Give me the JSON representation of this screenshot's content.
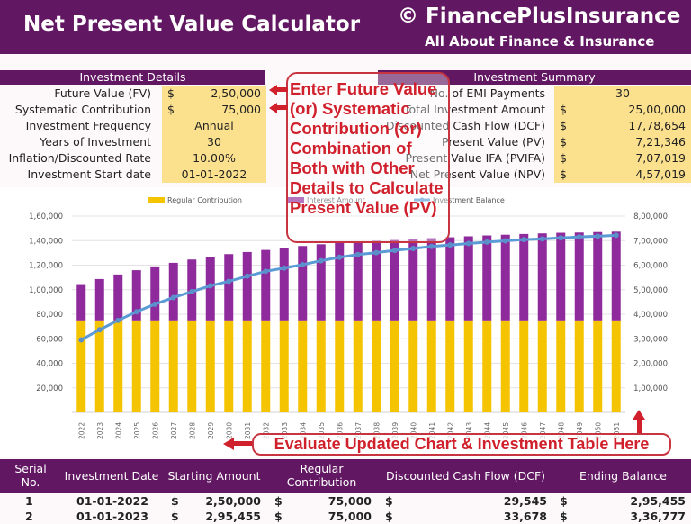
{
  "header": {
    "title": "Net Present Value Calculator",
    "brand": "© FinancePlusInsurance",
    "tagline": "All About Finance & Insurance"
  },
  "investment_details": {
    "heading": "Investment Details",
    "rows": [
      {
        "label": "Future Value (FV)",
        "currency": "$",
        "value": "2,50,000"
      },
      {
        "label": "Systematic Contribution",
        "currency": "$",
        "value": "75,000"
      },
      {
        "label": "Investment Frequency",
        "currency": "",
        "value": "Annual"
      },
      {
        "label": "Years of Investment",
        "currency": "",
        "value": "30"
      },
      {
        "label": "Inflation/Discounted Rate",
        "currency": "",
        "value": "10.00%"
      },
      {
        "label": "Investment Start date",
        "currency": "",
        "value": "01-01-2022"
      }
    ]
  },
  "investment_summary": {
    "heading": "Investment Summary",
    "rows": [
      {
        "label": "No. of EMI Payments",
        "currency": "",
        "value": "30"
      },
      {
        "label": "Total Investment Amount",
        "currency": "$",
        "value": "25,00,000"
      },
      {
        "label": "Discounted Cash Flow (DCF)",
        "currency": "$",
        "value": "17,78,654"
      },
      {
        "label": "Present Value (PV)",
        "currency": "$",
        "value": "7,21,346"
      },
      {
        "label": "Present Value IFA (PVIFA)",
        "currency": "$",
        "value": "7,07,019"
      },
      {
        "label": "Net Present Value (NPV)",
        "currency": "$",
        "value": "4,57,019"
      }
    ]
  },
  "callout_top": "Enter Future Value  (or) Systematic Contribution (or) Combination of Both with Other Details to Calculate Present Value (PV)",
  "callout_bottom": "Evaluate Updated Chart & Investment Table Here",
  "chart_data": {
    "type": "bar",
    "categories": [
      "2022",
      "2023",
      "2024",
      "2025",
      "2026",
      "2027",
      "2028",
      "2029",
      "2030",
      "2031",
      "2032",
      "2033",
      "2034",
      "2035",
      "2036",
      "2037",
      "2038",
      "2039",
      "2040",
      "2041",
      "2042",
      "2043",
      "2044",
      "2045",
      "2046",
      "2047",
      "2048",
      "2049",
      "2050",
      "2051"
    ],
    "series": [
      {
        "name": "Regular Contribution",
        "kind": "stacked-bar",
        "axis": "left",
        "color": "#f5c400",
        "values": [
          75000,
          75000,
          75000,
          75000,
          75000,
          75000,
          75000,
          75000,
          75000,
          75000,
          75000,
          75000,
          75000,
          75000,
          75000,
          75000,
          75000,
          75000,
          75000,
          75000,
          75000,
          75000,
          75000,
          75000,
          75000,
          75000,
          75000,
          75000,
          75000,
          75000
        ]
      },
      {
        "name": "Interest Amount",
        "kind": "stacked-bar",
        "axis": "left",
        "color": "#8e2a9c",
        "values": [
          29545,
          33678,
          37400,
          40900,
          44000,
          46900,
          49600,
          51800,
          54000,
          55700,
          57400,
          59100,
          60600,
          62000,
          63000,
          64000,
          64800,
          65500,
          66200,
          67000,
          67700,
          68500,
          69200,
          69800,
          70400,
          70900,
          71400,
          71600,
          72000,
          72300
        ]
      },
      {
        "name": "Investment Balance",
        "kind": "line",
        "axis": "right",
        "color": "#5b9bd5",
        "values": [
          295455,
          336777,
          375000,
          410000,
          441000,
          468000,
          492000,
          516000,
          534000,
          555000,
          575000,
          588000,
          602000,
          618000,
          632000,
          643000,
          651000,
          660000,
          668000,
          676000,
          682000,
          688000,
          694000,
          699000,
          704000,
          707000,
          711000,
          715000,
          718000,
          721346
        ]
      }
    ],
    "left_ticks": [
      "20,000",
      "40,000",
      "60,000",
      "80,000",
      "1,00,000",
      "1,20,000",
      "1,40,000",
      "1,60,000"
    ],
    "right_ticks": [
      "1,00,000",
      "2,00,000",
      "3,00,000",
      "4,00,000",
      "5,00,000",
      "6,00,000",
      "7,00,000",
      "8,00,000"
    ],
    "ylim_left": [
      0,
      160000
    ],
    "ylim_right": [
      0,
      800000
    ],
    "grid": true,
    "legend": "top"
  },
  "table": {
    "headers": [
      "Serial No.",
      "Investment Date",
      "Starting Amount",
      "Regular Contribution",
      "Discounted Cash Flow (DCF)",
      "Ending Balance"
    ],
    "rows": [
      {
        "serial": "1",
        "date": "01-01-2022",
        "cur": "$",
        "start": "2,50,000",
        "contrib": "75,000",
        "dcf": "29,545",
        "end": "2,95,455"
      },
      {
        "serial": "2",
        "date": "01-01-2023",
        "cur": "$",
        "start": "2,95,455",
        "contrib": "75,000",
        "dcf": "33,678",
        "end": "3,36,777"
      }
    ]
  }
}
